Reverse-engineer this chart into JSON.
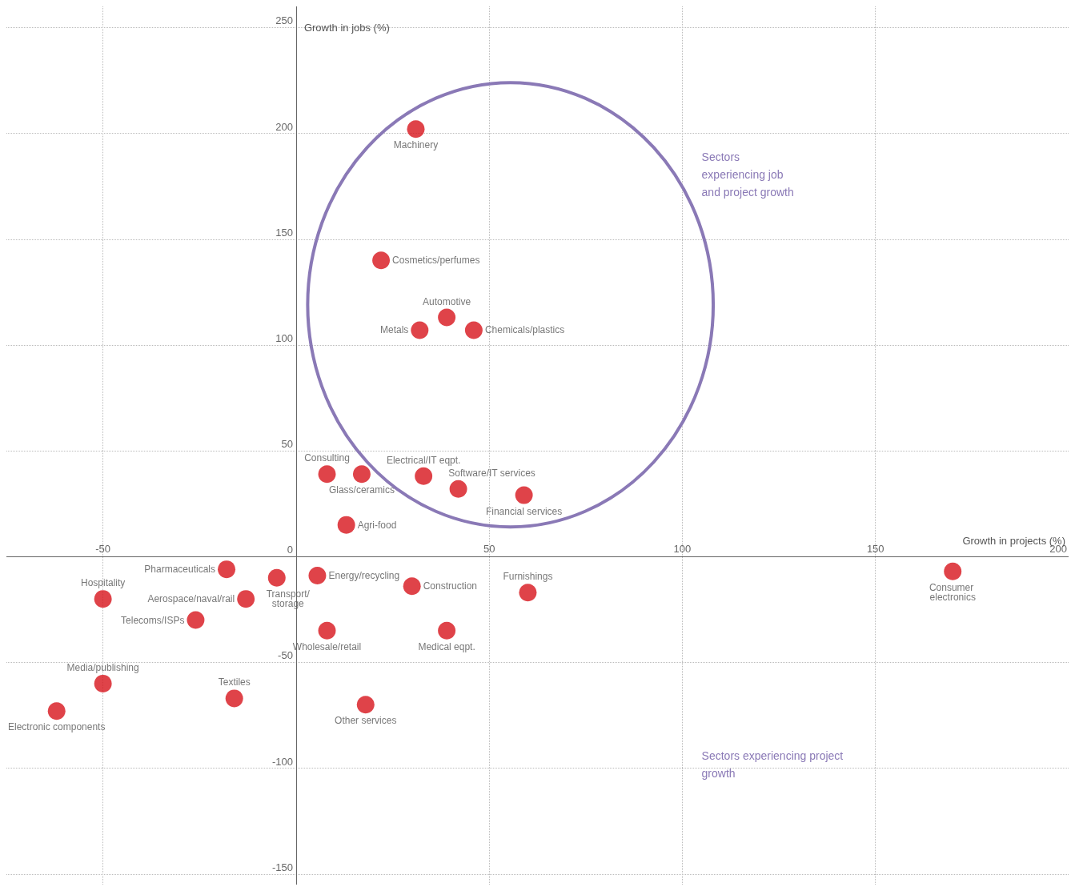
{
  "chart_data": {
    "type": "scatter",
    "xlabel": "Growth in projects (%)",
    "ylabel": "Growth in jobs (%)",
    "xlim": [
      -75,
      200
    ],
    "xticks": [
      -50,
      50,
      100,
      150,
      200
    ],
    "ylim": [
      -155,
      260
    ],
    "yticks": [
      -150,
      -100,
      -50,
      0,
      50,
      100,
      150,
      200,
      250
    ],
    "grid": true,
    "legend": false,
    "marker": "circle",
    "annotations": [
      "Sectors experiencing job and project growth",
      "Sectors experiencing project growth"
    ],
    "series": [
      {
        "name": "Machinery",
        "color": "#d7141b",
        "x": [
          31
        ],
        "values": [
          202
        ]
      },
      {
        "name": "Cosmetics/perfumes",
        "color": "#d7141b",
        "x": [
          22
        ],
        "values": [
          140
        ]
      },
      {
        "name": "Automotive",
        "color": "#d7141b",
        "x": [
          39
        ],
        "values": [
          113
        ]
      },
      {
        "name": "Metals",
        "color": "#d7141b",
        "x": [
          32
        ],
        "values": [
          107
        ]
      },
      {
        "name": "Chemicals/plastics",
        "color": "#d7141b",
        "x": [
          46
        ],
        "values": [
          107
        ]
      },
      {
        "name": "Consulting",
        "color": "#d7141b",
        "x": [
          8
        ],
        "values": [
          39
        ]
      },
      {
        "name": "Glass/ceramics",
        "color": "#d7141b",
        "x": [
          17
        ],
        "values": [
          39
        ]
      },
      {
        "name": "Electrical/IT eqpt.",
        "color": "#d7141b",
        "x": [
          33
        ],
        "values": [
          38
        ]
      },
      {
        "name": "Software/IT services",
        "color": "#d7141b",
        "x": [
          42
        ],
        "values": [
          32
        ]
      },
      {
        "name": "Financial services",
        "color": "#d7141b",
        "x": [
          59
        ],
        "values": [
          29
        ]
      },
      {
        "name": "Agri-food",
        "color": "#d7141b",
        "x": [
          13
        ],
        "values": [
          15
        ]
      },
      {
        "name": "Pharmaceuticals",
        "color": "#d7141b",
        "x": [
          -18
        ],
        "values": [
          -6
        ]
      },
      {
        "name": "Transport/storage",
        "color": "#d7141b",
        "x": [
          -5
        ],
        "values": [
          -10
        ]
      },
      {
        "name": "Energy/recycling",
        "color": "#d7141b",
        "x": [
          5.5
        ],
        "values": [
          -9
        ]
      },
      {
        "name": "Construction",
        "color": "#d7141b",
        "x": [
          30
        ],
        "values": [
          -14
        ]
      },
      {
        "name": "Furnishings",
        "color": "#d7141b",
        "x": [
          60
        ],
        "values": [
          -17
        ]
      },
      {
        "name": "Consumer electronics",
        "color": "#d7141b",
        "x": [
          170
        ],
        "values": [
          -7
        ]
      },
      {
        "name": "Hospitality",
        "color": "#d7141b",
        "x": [
          -50
        ],
        "values": [
          -20
        ]
      },
      {
        "name": "Aerospace/naval/rail",
        "color": "#d7141b",
        "x": [
          -13
        ],
        "values": [
          -20
        ]
      },
      {
        "name": "Telecoms/ISPs",
        "color": "#d7141b",
        "x": [
          -26
        ],
        "values": [
          -30
        ]
      },
      {
        "name": "Wholesale/retail",
        "color": "#d7141b",
        "x": [
          8
        ],
        "values": [
          -35
        ]
      },
      {
        "name": "Medical eqpt.",
        "color": "#d7141b",
        "x": [
          39
        ],
        "values": [
          -35
        ]
      },
      {
        "name": "Media/publishing",
        "color": "#d7141b",
        "x": [
          -50
        ],
        "values": [
          -60
        ]
      },
      {
        "name": "Textiles",
        "color": "#d7141b",
        "x": [
          -16
        ],
        "values": [
          -67
        ]
      },
      {
        "name": "Electronic components",
        "color": "#d7141b",
        "x": [
          -62
        ],
        "values": [
          -73
        ]
      },
      {
        "name": "Other services",
        "color": "#d7141b",
        "x": [
          18
        ],
        "values": [
          -70
        ]
      }
    ]
  }
}
